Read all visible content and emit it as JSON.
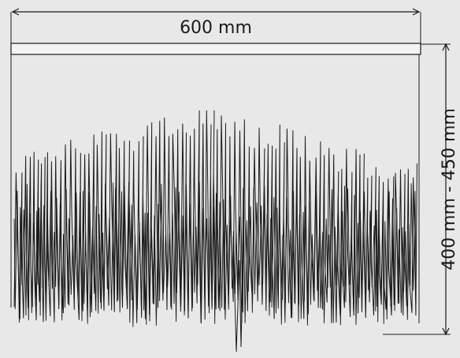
{
  "width_label": "600 mm",
  "height_label": "400 mm - 450 mm",
  "colors": {
    "background": "#e8e8e8",
    "line": "#1a1a1a",
    "strip_fill": "#f4f4f4"
  }
}
